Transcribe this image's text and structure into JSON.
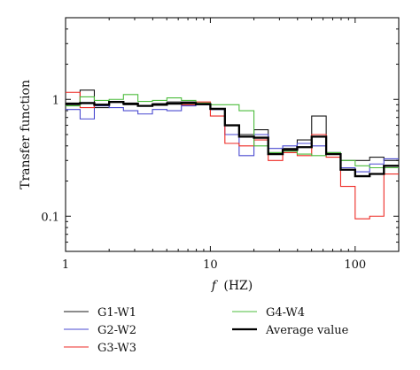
{
  "chart_data": {
    "type": "line",
    "step": true,
    "title": "",
    "xlabel": "f (HZ)",
    "xlabel_symbol": "f",
    "xlabel_unit": "(HZ)",
    "ylabel": "Transfer function",
    "x_scale": "log",
    "y_scale": "log",
    "xlim": [
      1,
      200
    ],
    "ylim": [
      0.05,
      5
    ],
    "x_ticks": [
      {
        "value": 1,
        "label": "1"
      },
      {
        "value": 10,
        "label": "10"
      },
      {
        "value": 100,
        "label": "100"
      }
    ],
    "y_ticks": [
      {
        "value": 0.1,
        "label": "0.1"
      },
      {
        "value": 1,
        "label": "1"
      }
    ],
    "grid": false,
    "legend_position": "bottom",
    "x_edges": [
      1,
      1.26,
      1.58,
      2,
      2.51,
      3.16,
      3.98,
      5.01,
      6.31,
      7.94,
      10,
      12.6,
      15.8,
      20,
      25.1,
      31.6,
      39.8,
      50.1,
      63.1,
      79.4,
      100,
      126,
      158,
      200
    ],
    "series": [
      {
        "name": "G1-W1",
        "color": "#1a1a1a",
        "width": 1.1,
        "values": [
          0.9,
          1.2,
          0.85,
          0.95,
          0.9,
          0.88,
          0.92,
          0.95,
          0.95,
          0.9,
          0.82,
          0.6,
          0.5,
          0.55,
          0.35,
          0.38,
          0.45,
          0.72,
          0.35,
          0.3,
          0.3,
          0.32,
          0.3
        ]
      },
      {
        "name": "G2-W2",
        "color": "#4a4ad0",
        "width": 1.1,
        "values": [
          0.82,
          0.68,
          0.88,
          0.85,
          0.8,
          0.75,
          0.82,
          0.8,
          0.88,
          0.9,
          0.82,
          0.5,
          0.33,
          0.5,
          0.38,
          0.4,
          0.42,
          0.4,
          0.35,
          0.26,
          0.24,
          0.28,
          0.31
        ]
      },
      {
        "name": "G3-W3",
        "color": "#ee2a24",
        "width": 1.1,
        "values": [
          1.15,
          0.85,
          0.9,
          0.95,
          0.92,
          0.88,
          0.9,
          0.92,
          0.9,
          0.95,
          0.72,
          0.42,
          0.4,
          0.45,
          0.3,
          0.35,
          0.33,
          0.5,
          0.32,
          0.18,
          0.095,
          0.1,
          0.23
        ]
      },
      {
        "name": "G4-W4",
        "color": "#4cbc3c",
        "width": 1.1,
        "values": [
          0.88,
          1.05,
          0.98,
          1.0,
          1.1,
          0.96,
          0.98,
          1.03,
          0.98,
          0.93,
          0.9,
          0.9,
          0.8,
          0.4,
          0.35,
          0.36,
          0.34,
          0.33,
          0.35,
          0.3,
          0.27,
          0.26,
          0.26
        ]
      },
      {
        "name": "Average value",
        "color": "#000000",
        "width": 2.3,
        "values": [
          0.92,
          0.93,
          0.9,
          0.95,
          0.92,
          0.88,
          0.9,
          0.92,
          0.93,
          0.91,
          0.83,
          0.6,
          0.48,
          0.47,
          0.34,
          0.37,
          0.39,
          0.48,
          0.34,
          0.25,
          0.22,
          0.23,
          0.27
        ]
      }
    ]
  }
}
